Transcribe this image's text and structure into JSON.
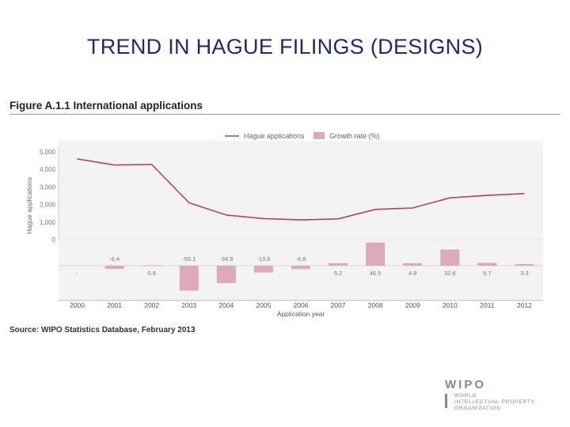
{
  "slide": {
    "title": "TREND IN HAGUE FILINGS (DESIGNS)",
    "figure_title": "Figure A.1.1 International applications",
    "source": "Source: WIPO Statistics Database, February 2013"
  },
  "logo": {
    "word": "WIPO",
    "lines": [
      "WORLD",
      "INTELLECTUAL PROPERTY",
      "ORGANIZATION"
    ]
  },
  "colors": {
    "line": "#b5464e",
    "bar": "#ddaab7",
    "plot_bg": "#f3f3f3",
    "title": "#1f2a6b"
  },
  "chart_data": {
    "type": "bar+line",
    "categories": [
      "2000",
      "2001",
      "2002",
      "2003",
      "2004",
      "2005",
      "2006",
      "2007",
      "2008",
      "2009",
      "2010",
      "2011",
      "2012"
    ],
    "xlabel": "Application year",
    "ylabel": "Hague applications",
    "y_ticks": [
      "5,000",
      "4,000",
      "3,000",
      "2,000",
      "1,000",
      "0"
    ],
    "ylim": [
      0,
      5000
    ],
    "legend_position": "top-center",
    "series": [
      {
        "name": "Hague applications",
        "kind": "line",
        "values": [
          4600,
          4250,
          4280,
          2100,
          1400,
          1200,
          1120,
          1180,
          1720,
          1800,
          2380,
          2520,
          2620
        ]
      },
      {
        "name": "Growth rate (%)",
        "kind": "bar",
        "values": [
          null,
          -6.4,
          0.8,
          -50.1,
          -34.9,
          -13.6,
          -6.8,
          5.2,
          46.5,
          4.9,
          32.6,
          5.7,
          3.3
        ],
        "labels": [
          "-",
          "-6.4",
          "0.8",
          "-50.1",
          "-34.9",
          "-13.6",
          "-6.8",
          "5.2",
          "46.5",
          "4.9",
          "32.6",
          "5.7",
          "3.3"
        ]
      }
    ]
  }
}
